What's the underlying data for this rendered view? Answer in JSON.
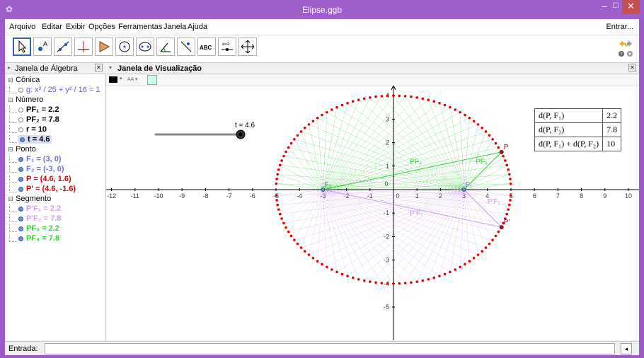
{
  "window": {
    "title": "Elipse.ggb"
  },
  "menu": {
    "items": [
      "Arquivo",
      "Editar",
      "Exibir",
      "Opções",
      "Ferramentas",
      "Janela",
      "Ajuda"
    ],
    "signin": "Entrar..."
  },
  "panels": {
    "algebra_title": "Janela de Álgebra",
    "graphics_title": "Janela de Visualização"
  },
  "algebra": {
    "conica": "Cônica",
    "conic_g": "g: x² / 25 + y² / 16 = 1",
    "numero": "Número",
    "pf1": "PF₁ = 2.2",
    "pf2": "PF₂ = 7.8",
    "r": "r = 10",
    "t": "t = 4.6",
    "ponto": "Ponto",
    "f1": "F₁ = (3, 0)",
    "f2": "F₂ = (-3, 0)",
    "p": "P = (4.6, 1.6)",
    "pprime": "P' = (4.6, -1.6)",
    "segmento": "Segmento",
    "ppf1": "P'F₁ = 2.2",
    "ppf2": "P'F₂ = 7.8",
    "pf3": "PF₃ = 2.2",
    "pf4": "PF₄ = 7.8"
  },
  "slider": {
    "label": "t = 4.6",
    "value": 4.6,
    "min": -5,
    "max": 5
  },
  "table": {
    "rows": [
      [
        "d(P, F₁)",
        "2.2"
      ],
      [
        "d(P, F₂)",
        "7.8"
      ],
      [
        "d(P, F₁) + d(P, F₂)",
        "10"
      ]
    ]
  },
  "graph": {
    "x_ticks": [
      "-12",
      "-11",
      "-10",
      "-9",
      "-8",
      "-7",
      "-6",
      "-5",
      "-4",
      "-3",
      "-2",
      "-1",
      "0",
      "1",
      "2",
      "3",
      "4",
      "5",
      "6",
      "7",
      "8",
      "9",
      "10"
    ],
    "y_ticks": [
      "4",
      "3",
      "2",
      "1",
      "-1",
      "-2",
      "-3",
      "-4",
      "-5"
    ],
    "labels": {
      "F1": "F₁",
      "F2": "F₂",
      "P": "P",
      "Pp": "P'",
      "PF3": "PF₃",
      "PF4": "PF₄",
      "PpF1": "P'F₁",
      "PpF2": "P'F₂"
    },
    "colors": {
      "green": "#33cc33",
      "violet": "#cc99ee",
      "red": "#e60000",
      "point": "#8b1a1a"
    }
  },
  "input": {
    "label": "Entrada:"
  }
}
